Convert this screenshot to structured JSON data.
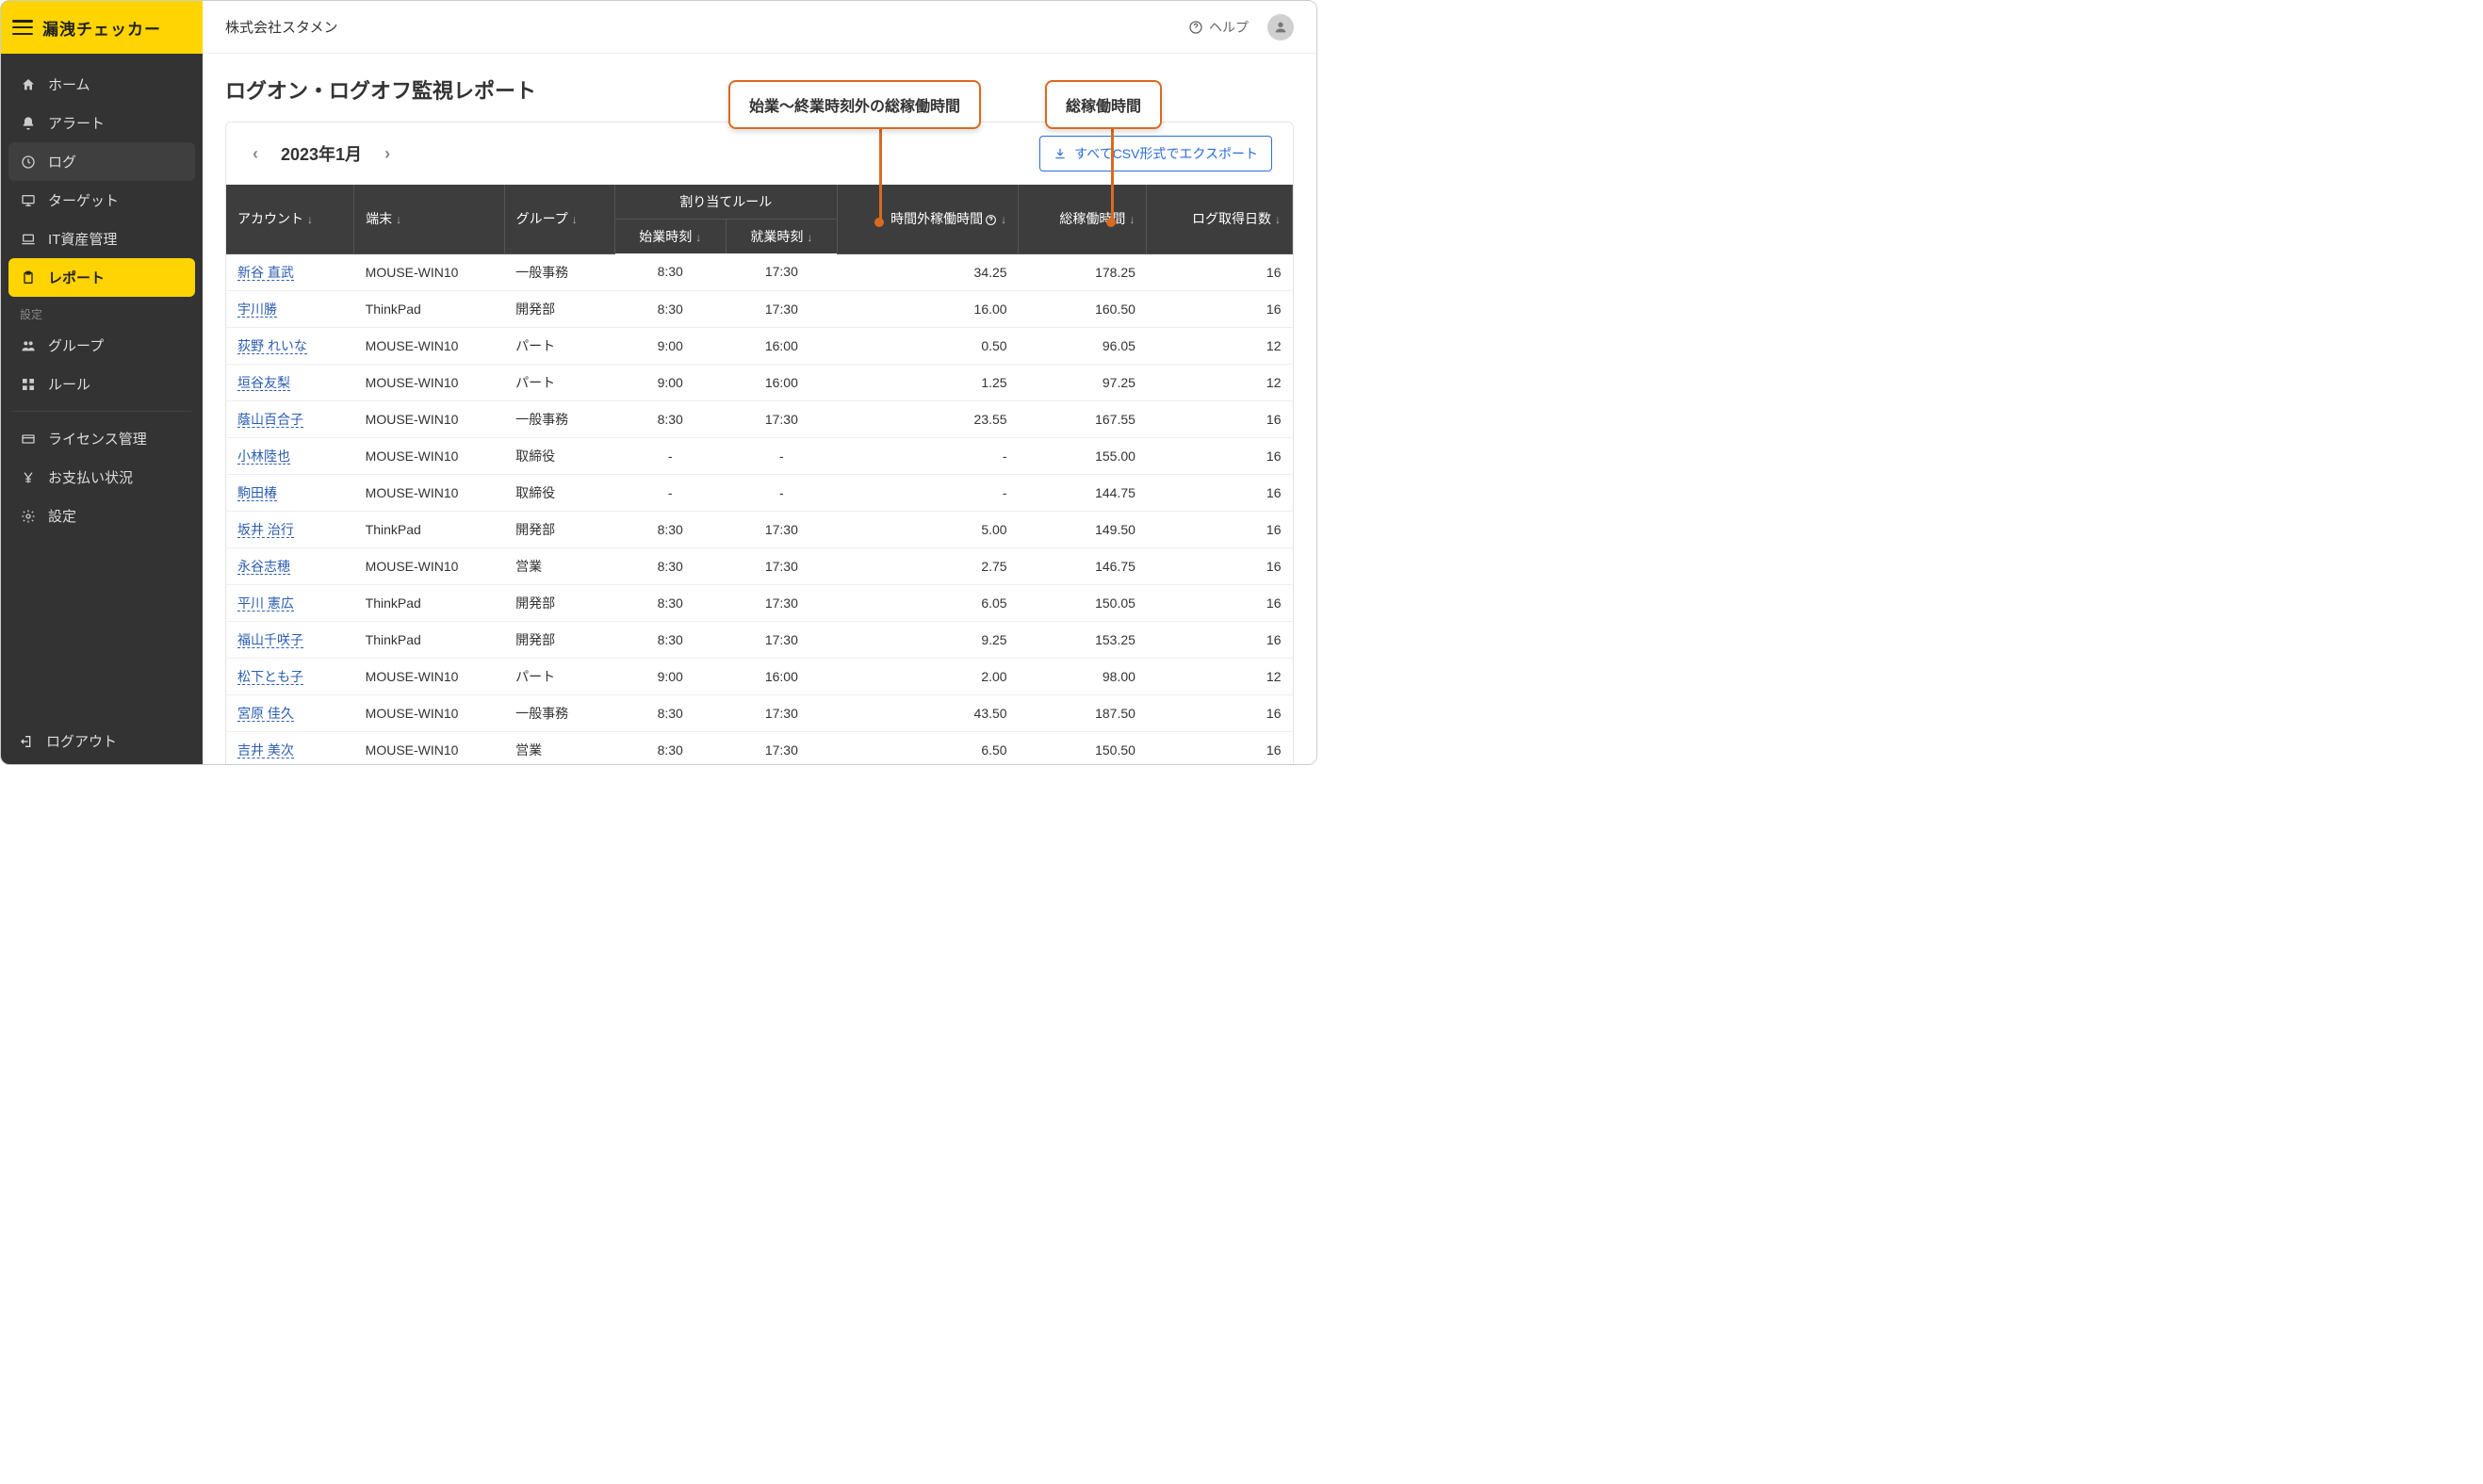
{
  "brand": {
    "title": "漏洩チェッカー"
  },
  "sidebar": {
    "items": [
      {
        "label": "ホーム",
        "icon": "home"
      },
      {
        "label": "アラート",
        "icon": "bell"
      },
      {
        "label": "ログ",
        "icon": "history"
      },
      {
        "label": "ターゲット",
        "icon": "monitor"
      },
      {
        "label": "IT資産管理",
        "icon": "laptop"
      },
      {
        "label": "レポート",
        "icon": "clipboard"
      }
    ],
    "settings_label": "設定",
    "settings_items": [
      {
        "label": "グループ",
        "icon": "users"
      },
      {
        "label": "ルール",
        "icon": "grid"
      }
    ],
    "admin_items": [
      {
        "label": "ライセンス管理",
        "icon": "license"
      },
      {
        "label": "お支払い状況",
        "icon": "yen"
      },
      {
        "label": "設定",
        "icon": "gear"
      }
    ],
    "logout_label": "ログアウト"
  },
  "header": {
    "company": "株式会社スタメン",
    "help_label": "ヘルプ"
  },
  "page": {
    "title": "ログオン・ログオフ監視レポート",
    "month_label": "2023年1月",
    "export_label": "すべてCSV形式でエクスポート"
  },
  "callouts": {
    "overtime": "始業〜終業時刻外の総稼働時間",
    "total": "総稼働時間"
  },
  "table": {
    "headers": {
      "account": "アカウント",
      "terminal": "端末",
      "group": "グループ",
      "rule_group": "割り当てルール",
      "start_time": "始業時刻",
      "end_time": "就業時刻",
      "overtime": "時間外稼働時間",
      "total": "総稼働時間",
      "log_days": "ログ取得日数"
    },
    "rows": [
      {
        "account": "新谷 直武",
        "terminal": "MOUSE-WIN10",
        "group": "一般事務",
        "start": "8:30",
        "end": "17:30",
        "overtime": "34.25",
        "total": "178.25",
        "days": "16"
      },
      {
        "account": "宇川勝",
        "terminal": "ThinkPad",
        "group": "開発部",
        "start": "8:30",
        "end": "17:30",
        "overtime": "16.00",
        "total": "160.50",
        "days": "16"
      },
      {
        "account": "荻野 れいな",
        "terminal": "MOUSE-WIN10",
        "group": "パート",
        "start": "9:00",
        "end": "16:00",
        "overtime": "0.50",
        "total": "96.05",
        "days": "12"
      },
      {
        "account": "垣谷友梨",
        "terminal": "MOUSE-WIN10",
        "group": "パート",
        "start": "9:00",
        "end": "16:00",
        "overtime": "1.25",
        "total": "97.25",
        "days": "12"
      },
      {
        "account": "蔭山百合子",
        "terminal": "MOUSE-WIN10",
        "group": "一般事務",
        "start": "8:30",
        "end": "17:30",
        "overtime": "23.55",
        "total": "167.55",
        "days": "16"
      },
      {
        "account": "小林陸也",
        "terminal": "MOUSE-WIN10",
        "group": "取締役",
        "start": "-",
        "end": "-",
        "overtime": "-",
        "total": "155.00",
        "days": "16"
      },
      {
        "account": "駒田椿",
        "terminal": "MOUSE-WIN10",
        "group": "取締役",
        "start": "-",
        "end": "-",
        "overtime": "-",
        "total": "144.75",
        "days": "16"
      },
      {
        "account": "坂井 治行",
        "terminal": "ThinkPad",
        "group": "開発部",
        "start": "8:30",
        "end": "17:30",
        "overtime": "5.00",
        "total": "149.50",
        "days": "16"
      },
      {
        "account": "永谷志穂",
        "terminal": "MOUSE-WIN10",
        "group": "営業",
        "start": "8:30",
        "end": "17:30",
        "overtime": "2.75",
        "total": "146.75",
        "days": "16"
      },
      {
        "account": "平川 憲広",
        "terminal": "ThinkPad",
        "group": "開発部",
        "start": "8:30",
        "end": "17:30",
        "overtime": "6.05",
        "total": "150.05",
        "days": "16"
      },
      {
        "account": "福山千咲子",
        "terminal": "ThinkPad",
        "group": "開発部",
        "start": "8:30",
        "end": "17:30",
        "overtime": "9.25",
        "total": "153.25",
        "days": "16"
      },
      {
        "account": "松下とも子",
        "terminal": "MOUSE-WIN10",
        "group": "パート",
        "start": "9:00",
        "end": "16:00",
        "overtime": "2.00",
        "total": "98.00",
        "days": "12"
      },
      {
        "account": "宮原 佳久",
        "terminal": "MOUSE-WIN10",
        "group": "一般事務",
        "start": "8:30",
        "end": "17:30",
        "overtime": "43.50",
        "total": "187.50",
        "days": "16"
      },
      {
        "account": "吉井 美次",
        "terminal": "MOUSE-WIN10",
        "group": "営業",
        "start": "8:30",
        "end": "17:30",
        "overtime": "6.50",
        "total": "150.50",
        "days": "16"
      }
    ]
  },
  "colors": {
    "accent_yellow": "#ffd400",
    "sidebar_bg": "#333333",
    "callout_border": "#d86b1f",
    "link": "#2a5db0",
    "export_blue": "#2a6dd6",
    "thead_bg": "#3d3d3d"
  }
}
